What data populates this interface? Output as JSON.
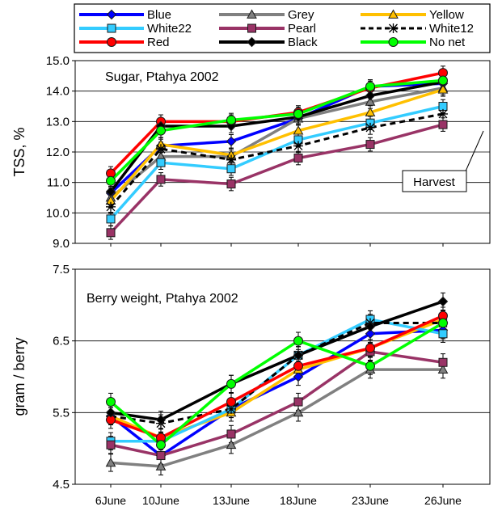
{
  "legend": {
    "entries": [
      {
        "name": "Blue",
        "color": "#0000ff",
        "marker": "diamond",
        "dash": false
      },
      {
        "name": "Grey",
        "color": "#808080",
        "marker": "triangle",
        "dash": false
      },
      {
        "name": "Yellow",
        "color": "#ffc000",
        "marker": "triangle",
        "dash": false
      },
      {
        "name": "White22",
        "color": "#33ccff",
        "marker": "square",
        "dash": false
      },
      {
        "name": "Pearl",
        "color": "#993366",
        "marker": "square",
        "dash": false
      },
      {
        "name": "White12",
        "color": "#000000",
        "marker": "star",
        "dash": true
      },
      {
        "name": "Red",
        "color": "#ff0000",
        "marker": "circle",
        "dash": false
      },
      {
        "name": "Black",
        "color": "#000000",
        "marker": "diamond",
        "dash": false
      },
      {
        "name": "No net",
        "color": "#00ff00",
        "marker": "circle",
        "dash": false
      }
    ]
  },
  "chart_data": [
    {
      "type": "line",
      "title": "Sugar, Ptahya 2002",
      "ylabel": "TSS, %",
      "xlabel": "",
      "categories": [
        "6June",
        "10June",
        "13June",
        "18June",
        "23June",
        "26June"
      ],
      "ylim": [
        9.0,
        15.0
      ],
      "yticks": [
        "9.0",
        "10.0",
        "11.0",
        "12.0",
        "13.0",
        "14.0",
        "15.0"
      ],
      "yticks_values": [
        9.0,
        10.0,
        11.0,
        12.0,
        13.0,
        14.0,
        15.0
      ],
      "grid": "horizontal",
      "annotation": "Harvest",
      "series": [
        {
          "name": "Blue",
          "values": [
            10.65,
            12.2,
            12.35,
            13.1,
            14.15,
            14.25
          ]
        },
        {
          "name": "Grey",
          "values": [
            10.5,
            11.85,
            11.85,
            13.1,
            13.65,
            14.1
          ]
        },
        {
          "name": "Yellow",
          "values": [
            10.4,
            12.25,
            11.9,
            12.7,
            13.3,
            14.05
          ]
        },
        {
          "name": "White22",
          "values": [
            9.8,
            11.65,
            11.45,
            12.4,
            12.95,
            13.5
          ]
        },
        {
          "name": "Pearl",
          "values": [
            9.35,
            11.1,
            10.95,
            11.8,
            12.25,
            12.9
          ]
        },
        {
          "name": "White12",
          "values": [
            10.2,
            12.1,
            11.75,
            12.2,
            12.8,
            13.25
          ]
        },
        {
          "name": "Red",
          "values": [
            11.3,
            13.0,
            13.0,
            13.3,
            14.1,
            14.6
          ]
        },
        {
          "name": "Black",
          "values": [
            10.7,
            12.85,
            12.85,
            13.15,
            13.85,
            14.3
          ]
        },
        {
          "name": "No net",
          "values": [
            11.05,
            12.7,
            13.05,
            13.25,
            14.15,
            14.35
          ]
        }
      ]
    },
    {
      "type": "line",
      "title": "Berry weight, Ptahya 2002",
      "ylabel": "gram / berry",
      "xlabel": "",
      "categories": [
        "6June",
        "10June",
        "13June",
        "18June",
        "23June",
        "26June"
      ],
      "ylim": [
        4.5,
        7.5
      ],
      "yticks": [
        "4.5",
        "5.5",
        "6.5",
        "7.5"
      ],
      "yticks_values": [
        4.5,
        5.5,
        6.5,
        7.5
      ],
      "grid": "horizontal",
      "series": [
        {
          "name": "Blue",
          "values": [
            5.45,
            4.9,
            5.55,
            6.0,
            6.6,
            6.65
          ]
        },
        {
          "name": "Grey",
          "values": [
            4.8,
            4.75,
            5.05,
            5.5,
            6.1,
            6.1
          ]
        },
        {
          "name": "Yellow",
          "values": [
            5.45,
            5.15,
            5.5,
            6.1,
            6.4,
            6.8
          ]
        },
        {
          "name": "White22",
          "values": [
            5.1,
            5.1,
            5.55,
            6.3,
            6.8,
            6.6
          ]
        },
        {
          "name": "Pearl",
          "values": [
            5.05,
            4.9,
            5.2,
            5.65,
            6.35,
            6.2
          ]
        },
        {
          "name": "White12",
          "values": [
            5.45,
            5.35,
            5.55,
            6.3,
            6.75,
            6.75
          ]
        },
        {
          "name": "Red",
          "values": [
            5.4,
            5.15,
            5.65,
            6.15,
            6.4,
            6.85
          ]
        },
        {
          "name": "Black",
          "values": [
            5.5,
            5.4,
            5.9,
            6.3,
            6.7,
            7.05
          ]
        },
        {
          "name": "No net",
          "values": [
            5.65,
            5.05,
            5.9,
            6.5,
            6.15,
            6.75
          ]
        }
      ]
    }
  ]
}
